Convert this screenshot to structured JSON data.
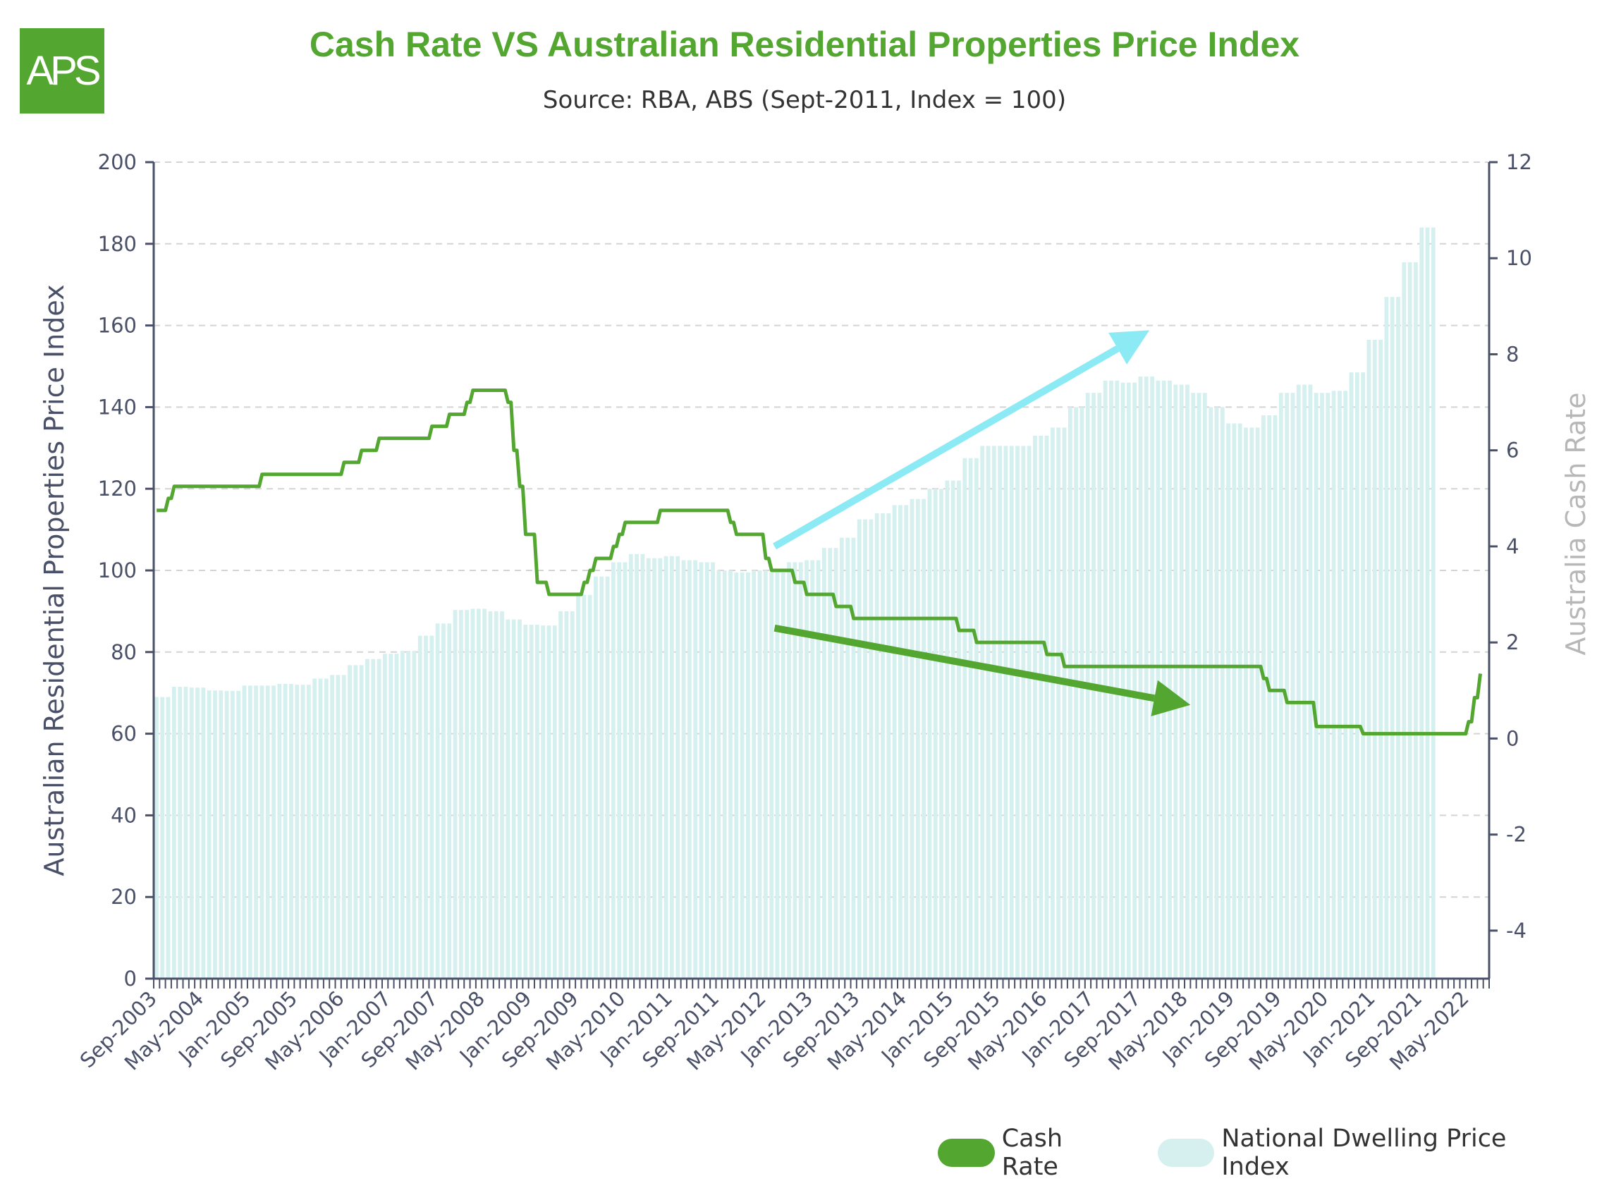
{
  "logo": {
    "text": "APS"
  },
  "chart_data": {
    "type": "bar+line",
    "title": "Cash Rate VS Australian Residential Properties Price Index",
    "subtitle": "Source: RBA, ABS (Sept-2011, Index = 100)",
    "ylabel_left": "Australian Residential Properties Price Index",
    "ylabel_right": "Australia Cash Rate",
    "ylim_left": [
      0,
      200
    ],
    "ylim_right": [
      -5,
      12
    ],
    "yticks_left": [
      "0",
      "20",
      "40",
      "60",
      "80",
      "100",
      "120",
      "140",
      "160",
      "180",
      "200"
    ],
    "yticks_right": [
      "-4",
      "-2",
      "0",
      "2",
      "4",
      "6",
      "8",
      "10",
      "12"
    ],
    "xticks": [
      "Sep-2003",
      "May-2004",
      "Jan-2005",
      "Sep-2005",
      "May-2006",
      "Jan-2007",
      "Sep-2007",
      "May-2008",
      "Jan-2009",
      "Sep-2009",
      "May-2010",
      "Jan-2011",
      "Sep-2011",
      "May-2012",
      "Jan-2013",
      "Sep-2013",
      "May-2014",
      "Jan-2015",
      "Sep-2015",
      "May-2016",
      "Jan-2017",
      "Sep-2017",
      "May-2018",
      "Jan-2019",
      "Sep-2019",
      "May-2020",
      "Jan-2021",
      "Sep-2021",
      "May-2022"
    ],
    "grid": true,
    "legend_position": "bottom-right",
    "series": [
      {
        "name": "Cash Rate",
        "type": "line",
        "axis": "right",
        "color": "#53a62f",
        "points": [
          [
            "2003-09",
            4.75
          ],
          [
            "2003-11",
            5.0
          ],
          [
            "2003-12",
            5.25
          ],
          [
            "2005-03",
            5.5
          ],
          [
            "2006-05",
            5.75
          ],
          [
            "2006-08",
            6.0
          ],
          [
            "2006-11",
            6.25
          ],
          [
            "2007-08",
            6.5
          ],
          [
            "2007-11",
            6.75
          ],
          [
            "2008-02",
            7.0
          ],
          [
            "2008-03",
            7.25
          ],
          [
            "2008-08",
            7.25
          ],
          [
            "2008-09",
            7.0
          ],
          [
            "2008-10",
            6.0
          ],
          [
            "2008-11",
            5.25
          ],
          [
            "2008-12",
            4.25
          ],
          [
            "2009-02",
            3.25
          ],
          [
            "2009-04",
            3.0
          ],
          [
            "2009-10",
            3.25
          ],
          [
            "2009-11",
            3.5
          ],
          [
            "2009-12",
            3.75
          ],
          [
            "2010-03",
            4.0
          ],
          [
            "2010-04",
            4.25
          ],
          [
            "2010-05",
            4.5
          ],
          [
            "2010-11",
            4.75
          ],
          [
            "2011-11",
            4.5
          ],
          [
            "2011-12",
            4.25
          ],
          [
            "2012-05",
            3.75
          ],
          [
            "2012-06",
            3.5
          ],
          [
            "2012-10",
            3.25
          ],
          [
            "2012-12",
            3.0
          ],
          [
            "2013-05",
            2.75
          ],
          [
            "2013-08",
            2.5
          ],
          [
            "2015-02",
            2.25
          ],
          [
            "2015-05",
            2.0
          ],
          [
            "2016-05",
            1.75
          ],
          [
            "2016-08",
            1.5
          ],
          [
            "2019-06",
            1.25
          ],
          [
            "2019-07",
            1.0
          ],
          [
            "2019-10",
            0.75
          ],
          [
            "2020-03",
            0.25
          ],
          [
            "2020-11",
            0.1
          ],
          [
            "2022-05",
            0.35
          ],
          [
            "2022-06",
            0.85
          ],
          [
            "2022-07",
            1.35
          ]
        ]
      },
      {
        "name": "National Dwelling Price Index",
        "type": "bar",
        "axis": "left",
        "color": "#d6f0f0",
        "quarterly_start": "2003-09",
        "values": [
          69,
          71.5,
          71.3,
          70.6,
          70.5,
          71.8,
          71.8,
          72.2,
          72,
          73.5,
          74.4,
          76.8,
          78.3,
          79.6,
          80.3,
          84,
          87,
          90.3,
          90.6,
          90,
          88,
          86.7,
          86.5,
          90,
          94,
          98.5,
          102,
          104,
          103,
          103.5,
          102.5,
          102,
          100,
          99.5,
          100,
          99.5,
          102,
          102.5,
          105.5,
          108,
          112.5,
          114,
          116,
          117.5,
          120,
          122,
          127.5,
          130.5,
          130.5,
          130.5,
          133,
          135,
          140,
          143.5,
          146.5,
          146,
          147.5,
          146.5,
          145.5,
          143.5,
          140,
          136,
          135,
          138,
          143.5,
          145.5,
          143.5,
          144,
          148.5,
          156.5,
          167,
          175.5,
          184
        ]
      }
    ],
    "annotations": [
      {
        "type": "arrow",
        "color": "#8ceaf5",
        "from": [
          "2012-07",
          4.0
        ],
        "to": [
          "2017-11",
          8.5
        ]
      },
      {
        "type": "arrow",
        "color": "#53a62f",
        "from": [
          "2012-07",
          2.3
        ],
        "to": [
          "2018-06",
          0.7
        ]
      }
    ]
  }
}
